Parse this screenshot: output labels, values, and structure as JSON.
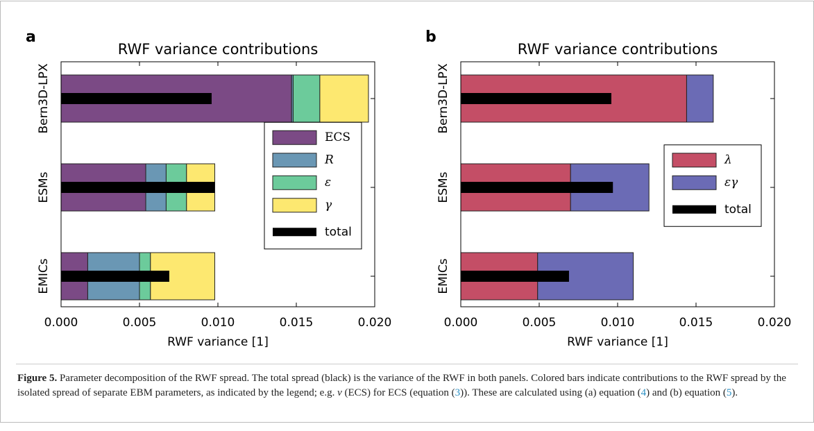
{
  "chart_data": [
    {
      "type": "stacked-barh",
      "panel_label": "a",
      "title": "RWF variance contributions",
      "xlabel": "RWF variance [1]",
      "categories": [
        "Bern3D-LPX",
        "ESMs",
        "EMICs"
      ],
      "series": [
        {
          "name": "ECS",
          "color": "#7b4a85",
          "values": [
            0.0147,
            0.0054,
            0.0017
          ]
        },
        {
          "name": "R",
          "color": "#6a97b4",
          "values": [
            0.0001,
            0.0013,
            0.0033
          ]
        },
        {
          "name": "ε",
          "color": "#6ccb9b",
          "values": [
            0.0017,
            0.0013,
            0.0007
          ]
        },
        {
          "name": "γ",
          "color": "#fde870",
          "values": [
            0.0031,
            0.0018,
            0.0041
          ]
        }
      ],
      "total": {
        "name": "total",
        "color": "#000000",
        "values": [
          0.0096,
          0.0098,
          0.0069
        ]
      },
      "xlim": [
        0,
        0.02
      ],
      "xticks": [
        {
          "value": 0,
          "label": "0.000"
        },
        {
          "value": 0.005,
          "label": "0.005"
        },
        {
          "value": 0.01,
          "label": "0.010"
        },
        {
          "value": 0.015,
          "label": "0.015"
        },
        {
          "value": 0.02,
          "label": "0.020"
        }
      ],
      "legend": "center right"
    },
    {
      "type": "stacked-barh",
      "panel_label": "b",
      "title": "RWF variance contributions",
      "xlabel": "RWF variance [1]",
      "categories": [
        "Bern3D-LPX",
        "ESMs",
        "EMICs"
      ],
      "series": [
        {
          "name": "λ",
          "color": "#c44e66",
          "values": [
            0.0144,
            0.007,
            0.0049
          ]
        },
        {
          "name": "εγ",
          "color": "#6b6bb5",
          "values": [
            0.0017,
            0.005,
            0.0061
          ]
        }
      ],
      "total": {
        "name": "total",
        "color": "#000000",
        "values": [
          0.0096,
          0.0097,
          0.0069
        ]
      },
      "xlim": [
        0,
        0.02
      ],
      "xticks": [
        {
          "value": 0,
          "label": "0.000"
        },
        {
          "value": 0.005,
          "label": "0.005"
        },
        {
          "value": 0.01,
          "label": "0.010"
        },
        {
          "value": 0.015,
          "label": "0.015"
        },
        {
          "value": 0.02,
          "label": "0.020"
        }
      ],
      "legend": "center right"
    }
  ],
  "caption": {
    "label": "Figure 5.",
    "parts": [
      "Parameter decomposition of the RWF spread. The total spread (black) is the variance of the RWF in both panels. Colored bars indicate contributions to the RWF spread by the isolated spread of separate EBM parameters, as indicated by the legend; e.g. ",
      "ν",
      " (ECS) for ECS (equation (",
      "3",
      ")). These are calculated using (a) equation (",
      "4",
      ") and (b) equation (",
      "5",
      ")."
    ]
  }
}
